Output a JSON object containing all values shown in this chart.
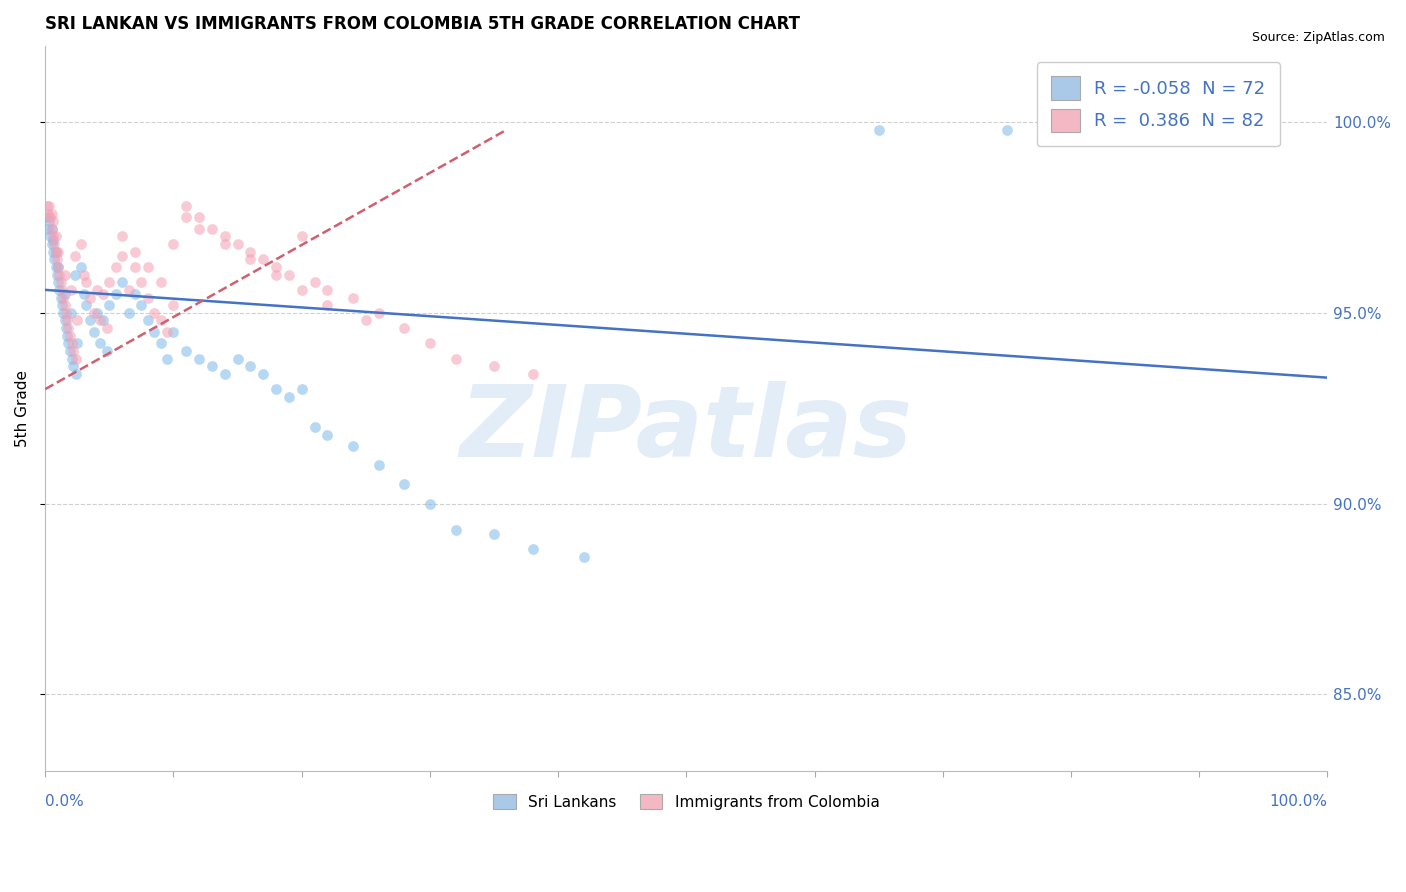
{
  "title": "SRI LANKAN VS IMMIGRANTS FROM COLOMBIA 5TH GRADE CORRELATION CHART",
  "source_text": "Source: ZipAtlas.com",
  "ylabel": "5th Grade",
  "yaxis_labels": [
    "85.0%",
    "90.0%",
    "95.0%",
    "100.0%"
  ],
  "yaxis_values": [
    0.85,
    0.9,
    0.95,
    1.0
  ],
  "xlim": [
    0.0,
    1.0
  ],
  "ylim": [
    0.83,
    1.02
  ],
  "legend_R_blue": "-0.058",
  "legend_N_blue": "72",
  "legend_R_pink": "0.386",
  "legend_N_pink": "82",
  "legend_label_blue": "Sri Lankans",
  "legend_label_pink": "Immigrants from Colombia",
  "blue_scatter_x": [
    0.001,
    0.002,
    0.003,
    0.004,
    0.005,
    0.005,
    0.006,
    0.006,
    0.007,
    0.008,
    0.008,
    0.009,
    0.01,
    0.01,
    0.011,
    0.012,
    0.013,
    0.014,
    0.015,
    0.015,
    0.016,
    0.017,
    0.018,
    0.019,
    0.02,
    0.021,
    0.022,
    0.023,
    0.024,
    0.025,
    0.028,
    0.03,
    0.032,
    0.035,
    0.038,
    0.04,
    0.043,
    0.045,
    0.048,
    0.05,
    0.055,
    0.06,
    0.065,
    0.07,
    0.075,
    0.08,
    0.085,
    0.09,
    0.095,
    0.1,
    0.11,
    0.12,
    0.13,
    0.14,
    0.15,
    0.16,
    0.17,
    0.18,
    0.19,
    0.2,
    0.21,
    0.22,
    0.24,
    0.26,
    0.28,
    0.3,
    0.32,
    0.35,
    0.38,
    0.42,
    0.65,
    0.75
  ],
  "blue_scatter_y": [
    0.975,
    0.972,
    0.974,
    0.97,
    0.968,
    0.972,
    0.966,
    0.969,
    0.964,
    0.962,
    0.966,
    0.96,
    0.958,
    0.962,
    0.956,
    0.954,
    0.952,
    0.95,
    0.955,
    0.948,
    0.946,
    0.944,
    0.942,
    0.94,
    0.95,
    0.938,
    0.936,
    0.96,
    0.934,
    0.942,
    0.962,
    0.955,
    0.952,
    0.948,
    0.945,
    0.95,
    0.942,
    0.948,
    0.94,
    0.952,
    0.955,
    0.958,
    0.95,
    0.955,
    0.952,
    0.948,
    0.945,
    0.942,
    0.938,
    0.945,
    0.94,
    0.938,
    0.936,
    0.934,
    0.938,
    0.936,
    0.934,
    0.93,
    0.928,
    0.93,
    0.92,
    0.918,
    0.915,
    0.91,
    0.905,
    0.9,
    0.893,
    0.892,
    0.888,
    0.886,
    0.998,
    0.998
  ],
  "pink_scatter_x": [
    0.001,
    0.002,
    0.003,
    0.004,
    0.005,
    0.005,
    0.006,
    0.006,
    0.007,
    0.008,
    0.008,
    0.009,
    0.01,
    0.01,
    0.011,
    0.012,
    0.013,
    0.014,
    0.015,
    0.015,
    0.016,
    0.017,
    0.018,
    0.019,
    0.02,
    0.021,
    0.022,
    0.023,
    0.024,
    0.025,
    0.028,
    0.03,
    0.032,
    0.035,
    0.038,
    0.04,
    0.043,
    0.045,
    0.048,
    0.05,
    0.055,
    0.06,
    0.065,
    0.07,
    0.075,
    0.08,
    0.085,
    0.09,
    0.095,
    0.1,
    0.11,
    0.12,
    0.13,
    0.14,
    0.15,
    0.16,
    0.17,
    0.18,
    0.19,
    0.2,
    0.21,
    0.22,
    0.24,
    0.26,
    0.28,
    0.3,
    0.32,
    0.35,
    0.38,
    0.06,
    0.07,
    0.08,
    0.09,
    0.1,
    0.11,
    0.12,
    0.14,
    0.16,
    0.18,
    0.2,
    0.22,
    0.25
  ],
  "pink_scatter_y": [
    0.978,
    0.976,
    0.978,
    0.975,
    0.972,
    0.976,
    0.97,
    0.974,
    0.968,
    0.966,
    0.97,
    0.964,
    0.962,
    0.966,
    0.96,
    0.958,
    0.956,
    0.954,
    0.96,
    0.952,
    0.95,
    0.948,
    0.946,
    0.944,
    0.956,
    0.942,
    0.94,
    0.965,
    0.938,
    0.948,
    0.968,
    0.96,
    0.958,
    0.954,
    0.95,
    0.956,
    0.948,
    0.955,
    0.946,
    0.958,
    0.962,
    0.965,
    0.956,
    0.962,
    0.958,
    0.954,
    0.95,
    0.948,
    0.945,
    0.952,
    0.978,
    0.975,
    0.972,
    0.97,
    0.968,
    0.966,
    0.964,
    0.962,
    0.96,
    0.97,
    0.958,
    0.956,
    0.954,
    0.95,
    0.946,
    0.942,
    0.938,
    0.936,
    0.934,
    0.97,
    0.966,
    0.962,
    0.958,
    0.968,
    0.975,
    0.972,
    0.968,
    0.964,
    0.96,
    0.956,
    0.952,
    0.948
  ],
  "blue_trend_x": [
    0.0,
    1.0
  ],
  "blue_trend_y": [
    0.956,
    0.933
  ],
  "pink_trend_x": [
    0.0,
    0.36
  ],
  "pink_trend_y": [
    0.93,
    0.998
  ],
  "watermark": "ZIPatlas",
  "bg_color": "#ffffff",
  "scatter_blue_color": "#7cb9e8",
  "scatter_pink_color": "#f4a0b5",
  "legend_blue_fill": "#aac8e8",
  "legend_pink_fill": "#f4b8c4",
  "trend_blue_color": "#4472c4",
  "trend_pink_color": "#d06070",
  "legend_text_color": "#4472c4",
  "axis_tick_color": "#4472c4",
  "grid_color": "#d0d0d0",
  "title_color": "#000000",
  "source_color": "#000000"
}
